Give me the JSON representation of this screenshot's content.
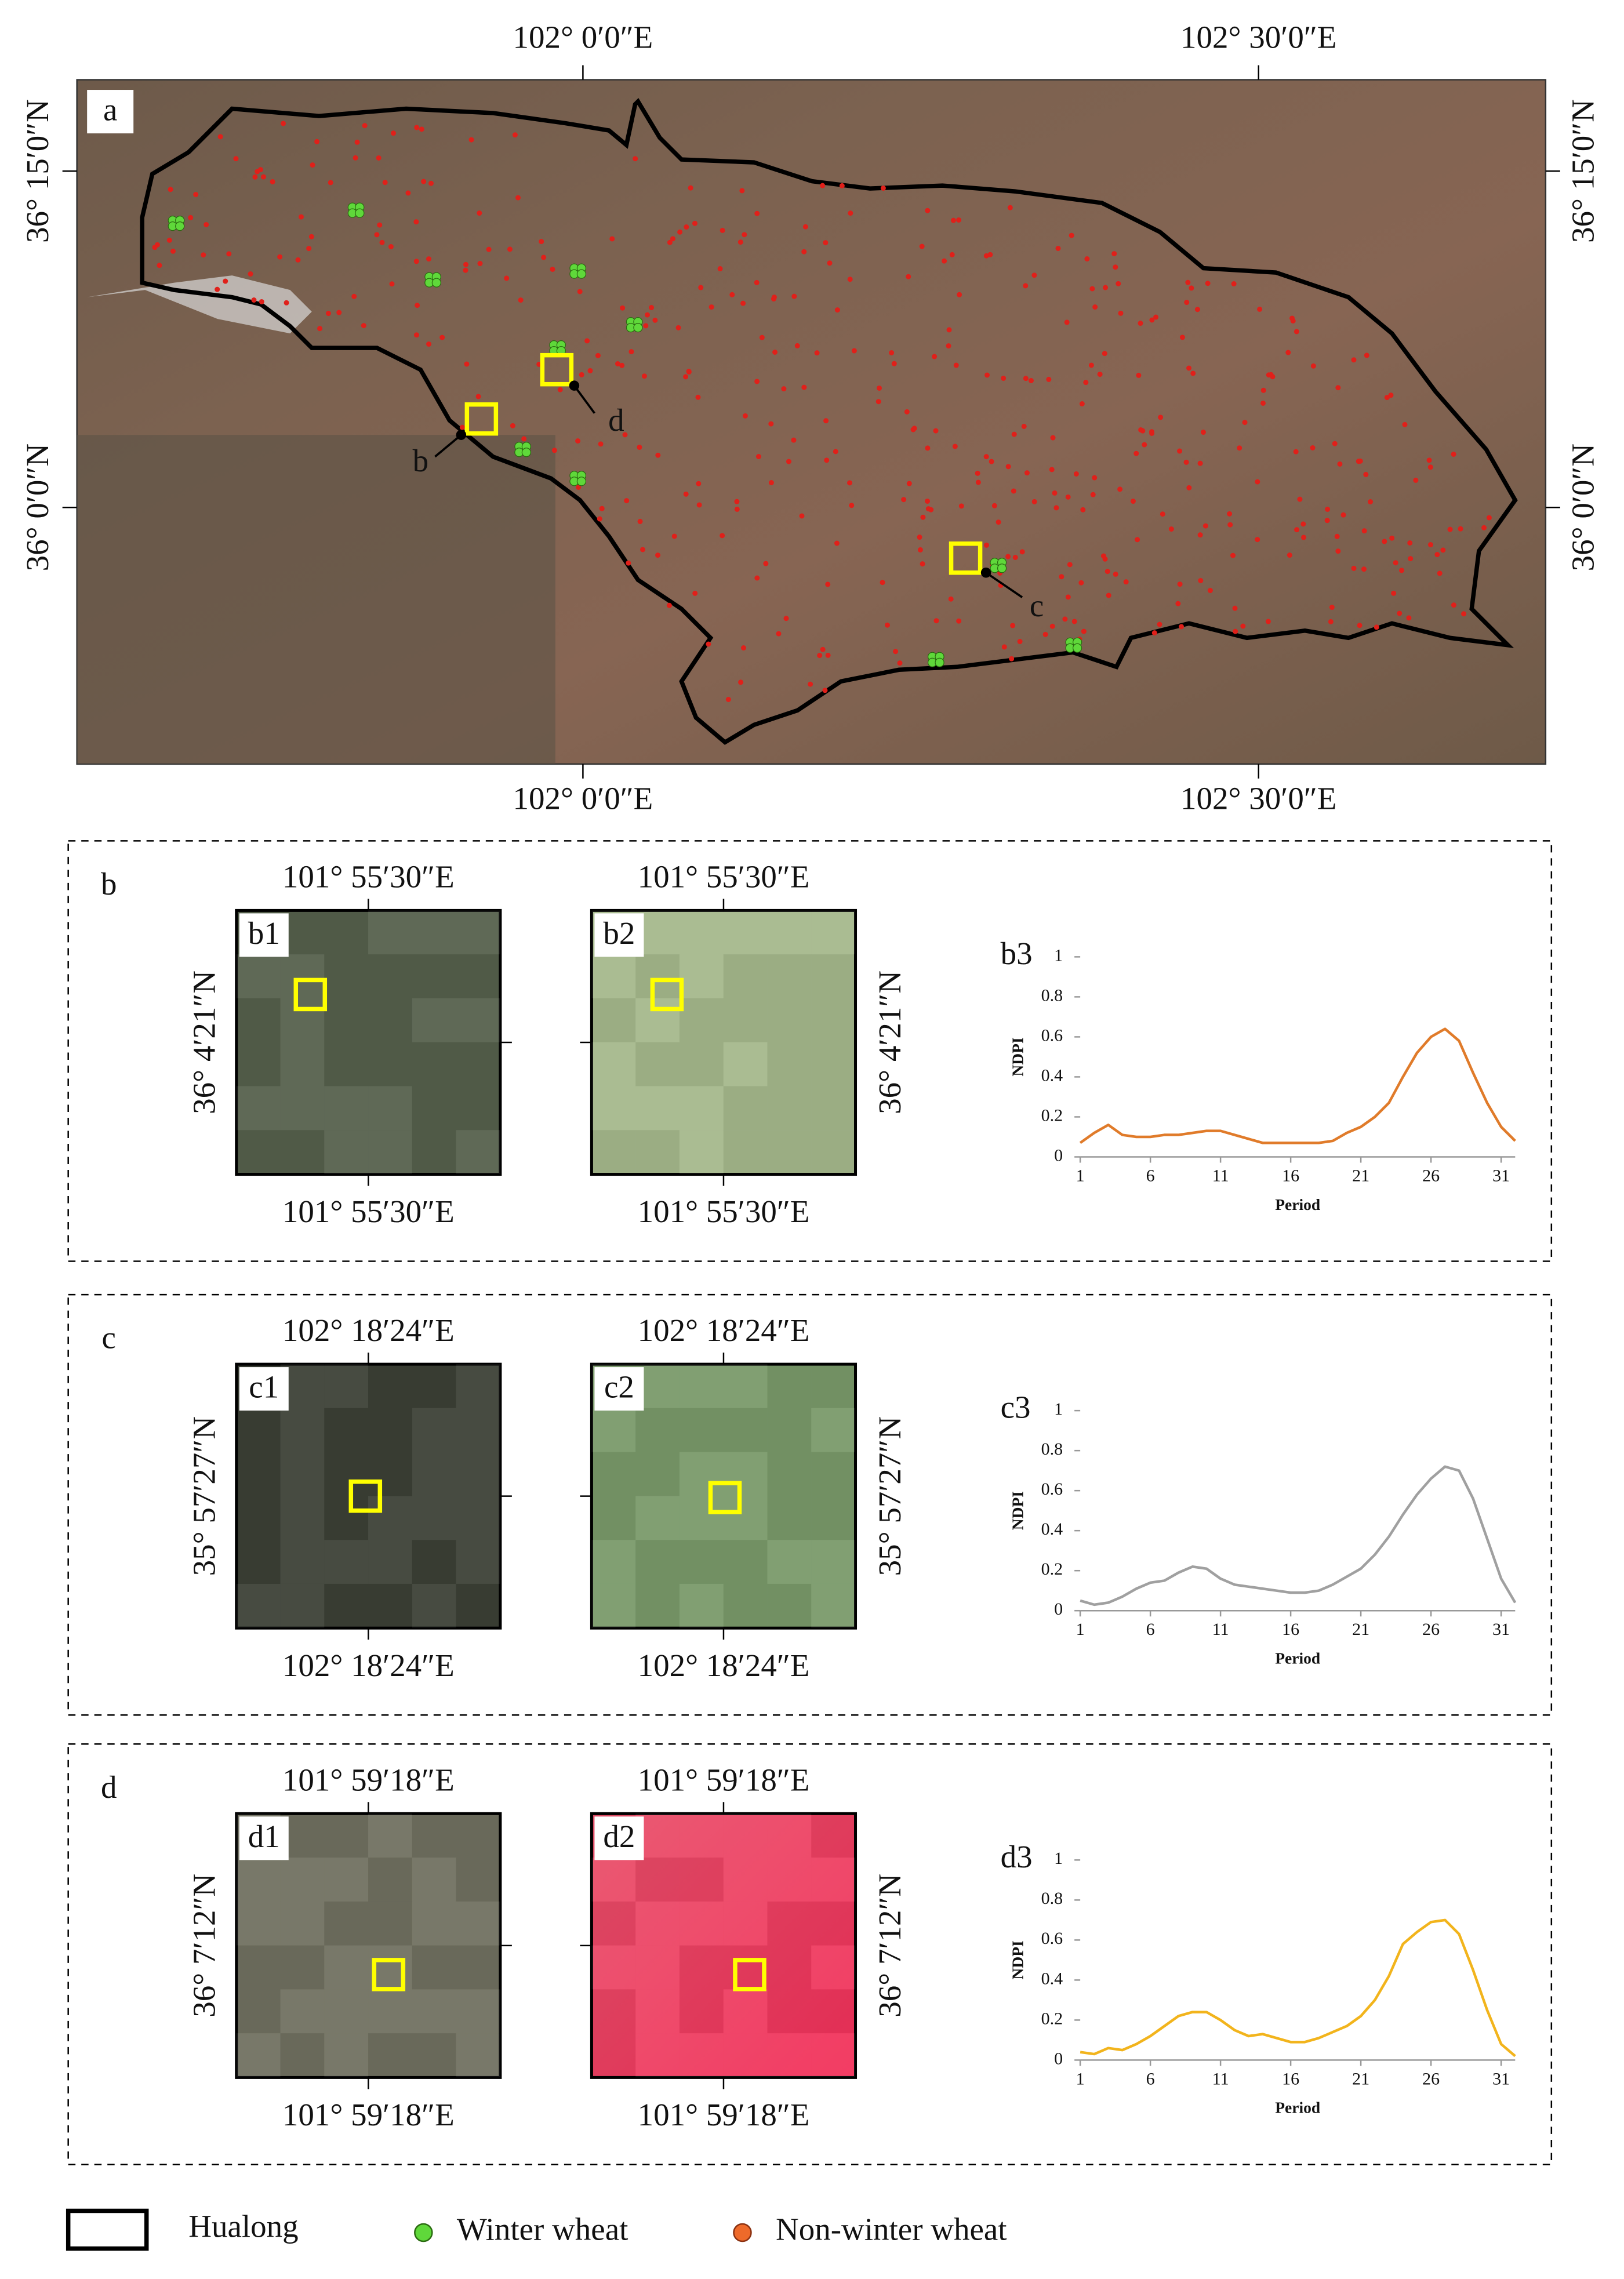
{
  "map": {
    "panel": "a",
    "lon_labels": [
      "102° 0′0″E",
      "102° 30′0″E"
    ],
    "lat_labels": [
      "36° 15′0″N",
      "36° 0′0″N"
    ],
    "callouts": [
      "b",
      "c",
      "d"
    ]
  },
  "panels": [
    {
      "label": "b",
      "images": [
        "b1",
        "b2"
      ],
      "lon": "101° 55′30″E",
      "lat": "36° 4′21″N"
    },
    {
      "label": "c",
      "images": [
        "c1",
        "c2"
      ],
      "lon": "102° 18′24″E",
      "lat": "35° 57′27″N"
    },
    {
      "label": "d",
      "images": [
        "d1",
        "d2"
      ],
      "lon": "101° 59′18″E",
      "lat": "36° 7′12″N"
    }
  ],
  "legend": [
    "Hualong",
    "Winter wheat",
    "Non-winter wheat"
  ],
  "chart_data": [
    {
      "type": "line",
      "title": "b3",
      "x_label": "Period",
      "y_label": "NDPI",
      "x": [
        1,
        2,
        3,
        4,
        5,
        6,
        7,
        8,
        9,
        10,
        11,
        12,
        13,
        14,
        15,
        16,
        17,
        18,
        19,
        20,
        21,
        22,
        23,
        24,
        25,
        26,
        27,
        28,
        29,
        30,
        31,
        32
      ],
      "xlim": [
        1,
        32
      ],
      "xticks": [
        1,
        6,
        11,
        16,
        21,
        26,
        31
      ],
      "ylim": [
        0,
        1
      ],
      "yticks": [
        0,
        0.2,
        0.4,
        0.6,
        0.8,
        1
      ],
      "series": [
        {
          "color": "#e07b2a",
          "values": [
            0.07,
            0.12,
            0.16,
            0.11,
            0.1,
            0.1,
            0.11,
            0.11,
            0.12,
            0.13,
            0.13,
            0.11,
            0.09,
            0.07,
            0.07,
            0.07,
            0.07,
            0.07,
            0.08,
            0.12,
            0.15,
            0.2,
            0.27,
            0.4,
            0.52,
            0.6,
            0.64,
            0.58,
            0.42,
            0.27,
            0.15,
            0.08
          ]
        }
      ]
    },
    {
      "type": "line",
      "title": "c3",
      "x_label": "Period",
      "y_label": "NDPI",
      "x": [
        1,
        2,
        3,
        4,
        5,
        6,
        7,
        8,
        9,
        10,
        11,
        12,
        13,
        14,
        15,
        16,
        17,
        18,
        19,
        20,
        21,
        22,
        23,
        24,
        25,
        26,
        27,
        28,
        29,
        30,
        31,
        32
      ],
      "xlim": [
        1,
        32
      ],
      "xticks": [
        1,
        6,
        11,
        16,
        21,
        26,
        31
      ],
      "ylim": [
        0,
        1
      ],
      "yticks": [
        0,
        0.2,
        0.4,
        0.6,
        0.8,
        1
      ],
      "series": [
        {
          "color": "#a0a0a0",
          "values": [
            0.05,
            0.03,
            0.04,
            0.07,
            0.11,
            0.14,
            0.15,
            0.19,
            0.22,
            0.21,
            0.16,
            0.13,
            0.12,
            0.11,
            0.1,
            0.09,
            0.09,
            0.1,
            0.13,
            0.17,
            0.21,
            0.28,
            0.37,
            0.48,
            0.58,
            0.66,
            0.72,
            0.7,
            0.56,
            0.36,
            0.16,
            0.04
          ]
        }
      ]
    },
    {
      "type": "line",
      "title": "d3",
      "x_label": "Period",
      "y_label": "NDPI",
      "x": [
        1,
        2,
        3,
        4,
        5,
        6,
        7,
        8,
        9,
        10,
        11,
        12,
        13,
        14,
        15,
        16,
        17,
        18,
        19,
        20,
        21,
        22,
        23,
        24,
        25,
        26,
        27,
        28,
        29,
        30,
        31,
        32
      ],
      "xlim": [
        1,
        32
      ],
      "xticks": [
        1,
        6,
        11,
        16,
        21,
        26,
        31
      ],
      "ylim": [
        0,
        1
      ],
      "yticks": [
        0,
        0.2,
        0.4,
        0.6,
        0.8,
        1
      ],
      "series": [
        {
          "color": "#f2b41c",
          "values": [
            0.04,
            0.03,
            0.06,
            0.05,
            0.08,
            0.12,
            0.17,
            0.22,
            0.24,
            0.24,
            0.2,
            0.15,
            0.12,
            0.13,
            0.11,
            0.09,
            0.09,
            0.11,
            0.14,
            0.17,
            0.22,
            0.3,
            0.42,
            0.58,
            0.64,
            0.69,
            0.7,
            0.63,
            0.45,
            0.25,
            0.08,
            0.02
          ]
        }
      ]
    }
  ]
}
